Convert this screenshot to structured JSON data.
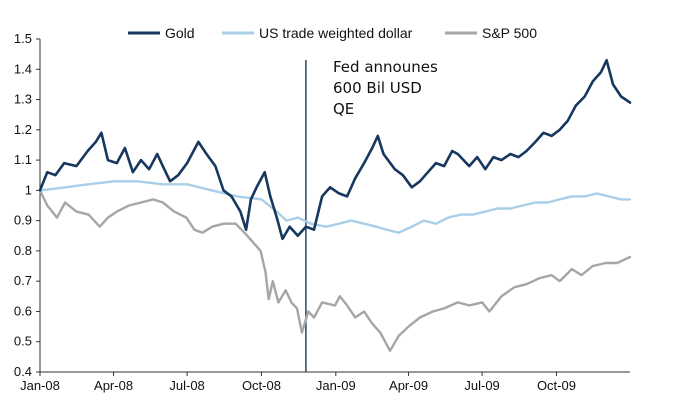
{
  "chart_data": {
    "type": "line",
    "title": "",
    "xlabel": "",
    "ylabel": "",
    "ylim": [
      0.4,
      1.5
    ],
    "y_ticks": [
      "1.5",
      "1.4",
      "1.3",
      "1.2",
      "1.1",
      "1",
      "0.9",
      "0.8",
      "0.7",
      "0.6",
      "0.5",
      "0.4"
    ],
    "x_range": [
      "2008-01-01",
      "2009-12-31"
    ],
    "x_ticks": [
      {
        "date": "2008-01-01",
        "label": "Jan-08"
      },
      {
        "date": "2008-04-01",
        "label": "Apr-08"
      },
      {
        "date": "2008-07-01",
        "label": "Jul-08"
      },
      {
        "date": "2008-10-01",
        "label": "Oct-08"
      },
      {
        "date": "2009-01-01",
        "label": "Jan-09"
      },
      {
        "date": "2009-04-01",
        "label": "Apr-09"
      },
      {
        "date": "2009-07-01",
        "label": "Jul-09"
      },
      {
        "date": "2009-10-01",
        "label": "Oct-09"
      }
    ],
    "grid": false,
    "legend_position": "top-center",
    "series": [
      {
        "name": "Gold",
        "color": "#17375e",
        "points": [
          [
            "2008-01-01",
            1.0
          ],
          [
            "2008-01-10",
            1.06
          ],
          [
            "2008-01-20",
            1.05
          ],
          [
            "2008-01-31",
            1.09
          ],
          [
            "2008-02-15",
            1.08
          ],
          [
            "2008-02-29",
            1.13
          ],
          [
            "2008-03-10",
            1.16
          ],
          [
            "2008-03-17",
            1.19
          ],
          [
            "2008-03-25",
            1.1
          ],
          [
            "2008-04-05",
            1.09
          ],
          [
            "2008-04-15",
            1.14
          ],
          [
            "2008-04-25",
            1.06
          ],
          [
            "2008-05-05",
            1.1
          ],
          [
            "2008-05-15",
            1.07
          ],
          [
            "2008-05-25",
            1.12
          ],
          [
            "2008-06-01",
            1.08
          ],
          [
            "2008-06-10",
            1.03
          ],
          [
            "2008-06-20",
            1.05
          ],
          [
            "2008-07-01",
            1.09
          ],
          [
            "2008-07-15",
            1.16
          ],
          [
            "2008-07-25",
            1.12
          ],
          [
            "2008-08-05",
            1.08
          ],
          [
            "2008-08-15",
            1.0
          ],
          [
            "2008-08-25",
            0.98
          ],
          [
            "2008-09-05",
            0.93
          ],
          [
            "2008-09-12",
            0.87
          ],
          [
            "2008-09-18",
            0.97
          ],
          [
            "2008-09-25",
            1.01
          ],
          [
            "2008-10-05",
            1.06
          ],
          [
            "2008-10-12",
            0.98
          ],
          [
            "2008-10-20",
            0.91
          ],
          [
            "2008-10-27",
            0.84
          ],
          [
            "2008-11-05",
            0.88
          ],
          [
            "2008-11-15",
            0.85
          ],
          [
            "2008-11-25",
            0.88
          ],
          [
            "2008-12-05",
            0.87
          ],
          [
            "2008-12-15",
            0.98
          ],
          [
            "2008-12-25",
            1.01
          ],
          [
            "2009-01-05",
            0.99
          ],
          [
            "2009-01-15",
            0.98
          ],
          [
            "2009-01-25",
            1.04
          ],
          [
            "2009-02-05",
            1.09
          ],
          [
            "2009-02-15",
            1.14
          ],
          [
            "2009-02-22",
            1.18
          ],
          [
            "2009-03-01",
            1.12
          ],
          [
            "2009-03-15",
            1.07
          ],
          [
            "2009-03-25",
            1.05
          ],
          [
            "2009-04-05",
            1.01
          ],
          [
            "2009-04-15",
            1.03
          ],
          [
            "2009-04-25",
            1.06
          ],
          [
            "2009-05-05",
            1.09
          ],
          [
            "2009-05-15",
            1.08
          ],
          [
            "2009-05-25",
            1.13
          ],
          [
            "2009-06-01",
            1.12
          ],
          [
            "2009-06-15",
            1.08
          ],
          [
            "2009-06-25",
            1.11
          ],
          [
            "2009-07-05",
            1.07
          ],
          [
            "2009-07-15",
            1.11
          ],
          [
            "2009-07-25",
            1.1
          ],
          [
            "2009-08-05",
            1.12
          ],
          [
            "2009-08-15",
            1.11
          ],
          [
            "2009-08-25",
            1.13
          ],
          [
            "2009-09-05",
            1.16
          ],
          [
            "2009-09-15",
            1.19
          ],
          [
            "2009-09-25",
            1.18
          ],
          [
            "2009-10-05",
            1.2
          ],
          [
            "2009-10-15",
            1.23
          ],
          [
            "2009-10-25",
            1.28
          ],
          [
            "2009-11-05",
            1.31
          ],
          [
            "2009-11-15",
            1.36
          ],
          [
            "2009-11-25",
            1.39
          ],
          [
            "2009-12-02",
            1.43
          ],
          [
            "2009-12-10",
            1.35
          ],
          [
            "2009-12-20",
            1.31
          ],
          [
            "2009-12-31",
            1.29
          ]
        ]
      },
      {
        "name": "US trade weighted dollar",
        "color": "#a9cfe8",
        "points": [
          [
            "2008-01-01",
            1.0
          ],
          [
            "2008-02-01",
            1.01
          ],
          [
            "2008-03-01",
            1.02
          ],
          [
            "2008-04-01",
            1.03
          ],
          [
            "2008-05-01",
            1.03
          ],
          [
            "2008-06-01",
            1.02
          ],
          [
            "2008-07-01",
            1.02
          ],
          [
            "2008-08-01",
            1.0
          ],
          [
            "2008-09-01",
            0.98
          ],
          [
            "2008-10-01",
            0.97
          ],
          [
            "2008-10-20",
            0.93
          ],
          [
            "2008-11-01",
            0.9
          ],
          [
            "2008-11-15",
            0.91
          ],
          [
            "2008-12-01",
            0.89
          ],
          [
            "2008-12-20",
            0.88
          ],
          [
            "2009-01-05",
            0.89
          ],
          [
            "2009-01-20",
            0.9
          ],
          [
            "2009-02-05",
            0.89
          ],
          [
            "2009-02-20",
            0.88
          ],
          [
            "2009-03-05",
            0.87
          ],
          [
            "2009-03-20",
            0.86
          ],
          [
            "2009-04-05",
            0.88
          ],
          [
            "2009-04-20",
            0.9
          ],
          [
            "2009-05-05",
            0.89
          ],
          [
            "2009-05-20",
            0.91
          ],
          [
            "2009-06-05",
            0.92
          ],
          [
            "2009-06-20",
            0.92
          ],
          [
            "2009-07-05",
            0.93
          ],
          [
            "2009-07-20",
            0.94
          ],
          [
            "2009-08-05",
            0.94
          ],
          [
            "2009-08-20",
            0.95
          ],
          [
            "2009-09-05",
            0.96
          ],
          [
            "2009-09-20",
            0.96
          ],
          [
            "2009-10-05",
            0.97
          ],
          [
            "2009-10-20",
            0.98
          ],
          [
            "2009-11-05",
            0.98
          ],
          [
            "2009-11-20",
            0.99
          ],
          [
            "2009-12-05",
            0.98
          ],
          [
            "2009-12-20",
            0.97
          ],
          [
            "2009-12-31",
            0.97
          ]
        ]
      },
      {
        "name": "S&P 500",
        "color": "#a6a6a6",
        "points": [
          [
            "2008-01-01",
            1.0
          ],
          [
            "2008-01-10",
            0.95
          ],
          [
            "2008-01-22",
            0.91
          ],
          [
            "2008-02-01",
            0.96
          ],
          [
            "2008-02-15",
            0.93
          ],
          [
            "2008-03-01",
            0.92
          ],
          [
            "2008-03-15",
            0.88
          ],
          [
            "2008-03-25",
            0.91
          ],
          [
            "2008-04-05",
            0.93
          ],
          [
            "2008-04-20",
            0.95
          ],
          [
            "2008-05-05",
            0.96
          ],
          [
            "2008-05-20",
            0.97
          ],
          [
            "2008-06-01",
            0.96
          ],
          [
            "2008-06-15",
            0.93
          ],
          [
            "2008-06-30",
            0.91
          ],
          [
            "2008-07-10",
            0.87
          ],
          [
            "2008-07-20",
            0.86
          ],
          [
            "2008-08-01",
            0.88
          ],
          [
            "2008-08-15",
            0.89
          ],
          [
            "2008-08-30",
            0.89
          ],
          [
            "2008-09-10",
            0.86
          ],
          [
            "2008-09-20",
            0.83
          ],
          [
            "2008-09-30",
            0.8
          ],
          [
            "2008-10-06",
            0.73
          ],
          [
            "2008-10-10",
            0.64
          ],
          [
            "2008-10-15",
            0.7
          ],
          [
            "2008-10-22",
            0.63
          ],
          [
            "2008-10-31",
            0.67
          ],
          [
            "2008-11-07",
            0.63
          ],
          [
            "2008-11-14",
            0.61
          ],
          [
            "2008-11-20",
            0.53
          ],
          [
            "2008-11-28",
            0.6
          ],
          [
            "2008-12-05",
            0.58
          ],
          [
            "2008-12-15",
            0.63
          ],
          [
            "2008-12-31",
            0.62
          ],
          [
            "2009-01-06",
            0.65
          ],
          [
            "2009-01-15",
            0.62
          ],
          [
            "2009-01-25",
            0.58
          ],
          [
            "2009-02-05",
            0.6
          ],
          [
            "2009-02-15",
            0.56
          ],
          [
            "2009-02-25",
            0.53
          ],
          [
            "2009-03-09",
            0.47
          ],
          [
            "2009-03-20",
            0.52
          ],
          [
            "2009-04-01",
            0.55
          ],
          [
            "2009-04-15",
            0.58
          ],
          [
            "2009-05-01",
            0.6
          ],
          [
            "2009-05-15",
            0.61
          ],
          [
            "2009-06-01",
            0.63
          ],
          [
            "2009-06-15",
            0.62
          ],
          [
            "2009-07-01",
            0.63
          ],
          [
            "2009-07-10",
            0.6
          ],
          [
            "2009-07-25",
            0.65
          ],
          [
            "2009-08-10",
            0.68
          ],
          [
            "2009-08-25",
            0.69
          ],
          [
            "2009-09-10",
            0.71
          ],
          [
            "2009-09-25",
            0.72
          ],
          [
            "2009-10-05",
            0.7
          ],
          [
            "2009-10-20",
            0.74
          ],
          [
            "2009-11-01",
            0.72
          ],
          [
            "2009-11-15",
            0.75
          ],
          [
            "2009-12-01",
            0.76
          ],
          [
            "2009-12-15",
            0.76
          ],
          [
            "2009-12-31",
            0.78
          ]
        ]
      }
    ],
    "annotations": [
      {
        "date": "2008-11-25",
        "lines": [
          "Fed announes",
          "600 Bil USD",
          "QE"
        ],
        "color": "#17375e"
      }
    ]
  }
}
